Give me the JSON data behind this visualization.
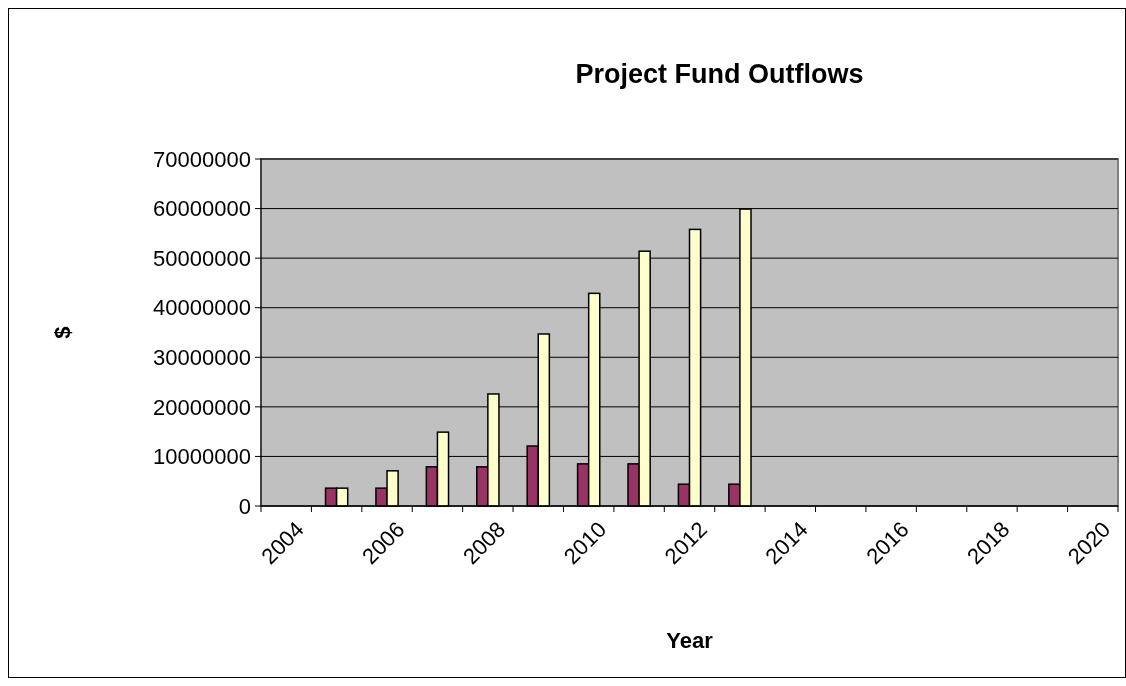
{
  "chart_data": {
    "type": "bar",
    "title": "Project Fund Outflows",
    "xlabel": "Year",
    "ylabel": "$",
    "categories": [
      "2004",
      null,
      "2006",
      null,
      "2008",
      null,
      "2010",
      null,
      "2012",
      null,
      "2014",
      null,
      "2016",
      null,
      "2018",
      null,
      "2020"
    ],
    "series": [
      {
        "color": "#993366",
        "values": [
          null,
          3600000,
          3600000,
          7900000,
          7900000,
          12100000,
          8500000,
          8500000,
          4400000,
          4400000,
          null,
          null,
          null,
          null,
          null,
          null,
          null
        ]
      },
      {
        "color": "#ffffcc",
        "values": [
          null,
          3600000,
          7100000,
          14900000,
          22600000,
          34700000,
          42900000,
          51400000,
          55800000,
          59900000,
          null,
          null,
          null,
          null,
          null,
          null,
          null
        ]
      }
    ],
    "ylim": [
      0,
      70000000
    ],
    "yticks": [
      0,
      10000000,
      20000000,
      30000000,
      40000000,
      50000000,
      60000000,
      70000000
    ],
    "grid": "y"
  }
}
